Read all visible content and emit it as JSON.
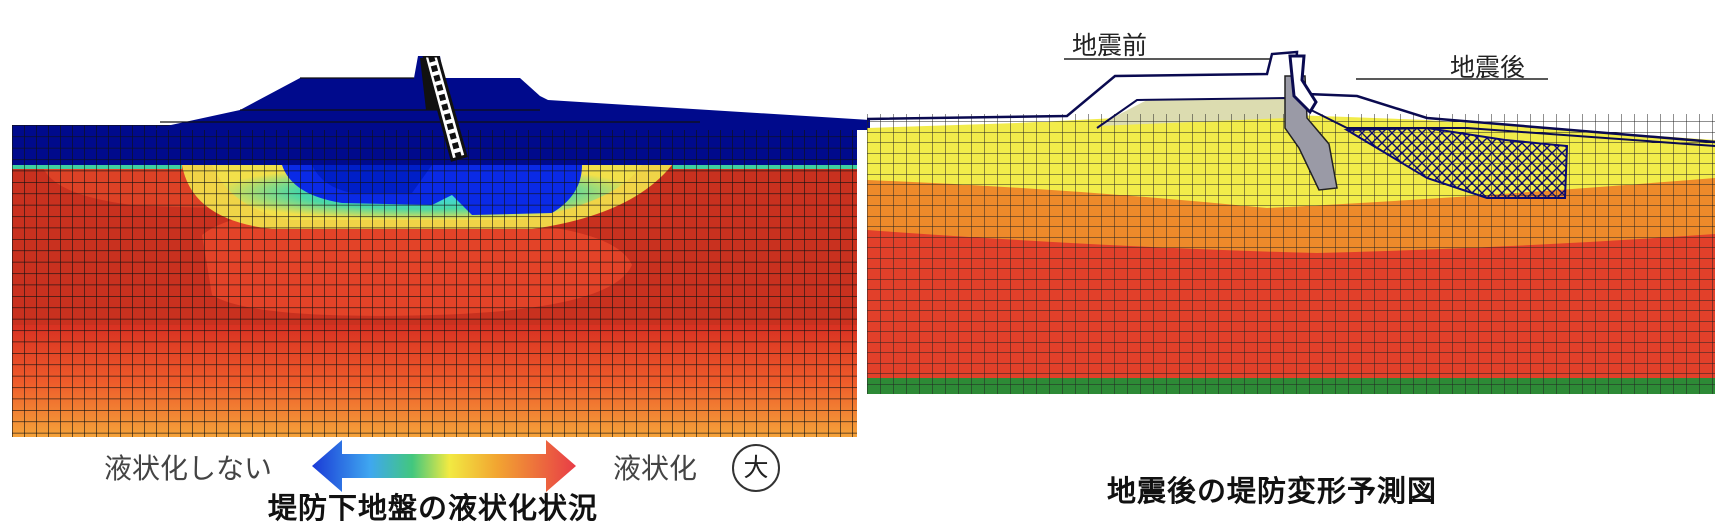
{
  "left": {
    "caption": "堤防下地盤の液状化状況",
    "legend": {
      "low_label": "液状化しない",
      "high_label": "液状化",
      "circle_label": "大",
      "gradient_colors": [
        "#1a3ad6",
        "#3fa7f0",
        "#42c77e",
        "#f2ea42",
        "#f2a531",
        "#e83c47"
      ]
    }
  },
  "right": {
    "caption": "地震後の堤防変形予測図",
    "before_label": "地震前",
    "after_label": "地震後"
  },
  "colors": {
    "navy": "#000a8c",
    "blue": "#0a29e6",
    "cyan": "#3fd0f5",
    "red": "#e03a26",
    "dark_red": "#c82d20",
    "yellow": "#f2ec4a",
    "orange": "#ee8a2a",
    "green": "#2d8a36"
  }
}
